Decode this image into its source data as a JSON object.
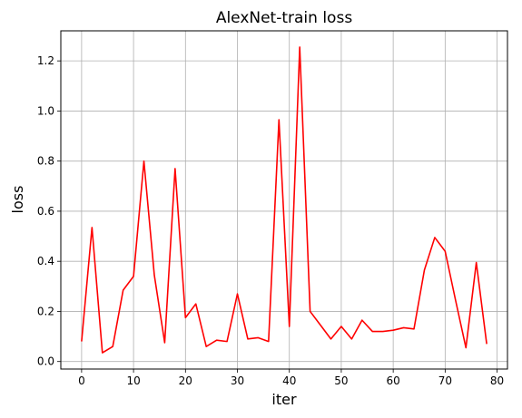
{
  "chart_data": {
    "type": "line",
    "title": "AlexNet-train loss",
    "xlabel": "iter",
    "ylabel": "loss",
    "xlim": [
      -4,
      82
    ],
    "ylim": [
      -0.03,
      1.32
    ],
    "xticks": [
      0,
      10,
      20,
      30,
      40,
      50,
      60,
      70,
      80
    ],
    "yticks": [
      0.0,
      0.2,
      0.4,
      0.6,
      0.8,
      1.0,
      1.2
    ],
    "ytick_labels": [
      "0.0",
      "0.2",
      "0.4",
      "0.6",
      "0.8",
      "1.0",
      "1.2"
    ],
    "grid": true,
    "series": [
      {
        "color": "#ff0000",
        "x": [
          0,
          2,
          4,
          6,
          8,
          10,
          12,
          14,
          16,
          18,
          20,
          22,
          24,
          26,
          28,
          30,
          32,
          34,
          36,
          38,
          40,
          42,
          44,
          46,
          48,
          50,
          52,
          54,
          56,
          58,
          60,
          62,
          64,
          66,
          68,
          70,
          72,
          74,
          76,
          78
        ],
        "y": [
          0.08,
          0.535,
          0.035,
          0.06,
          0.285,
          0.34,
          0.8,
          0.345,
          0.075,
          0.77,
          0.175,
          0.23,
          0.06,
          0.085,
          0.08,
          0.27,
          0.09,
          0.095,
          0.08,
          0.965,
          0.14,
          1.255,
          0.2,
          0.145,
          0.09,
          0.14,
          0.09,
          0.165,
          0.12,
          0.12,
          0.125,
          0.135,
          0.13,
          0.365,
          0.495,
          0.44,
          0.245,
          0.055,
          0.395,
          0.07
        ]
      }
    ]
  }
}
